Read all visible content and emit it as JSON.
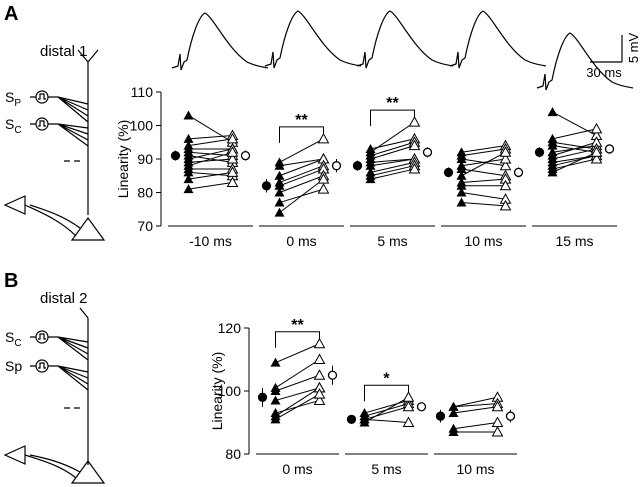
{
  "panels": [
    {
      "label": "A",
      "title": "distal 1",
      "inputs": [
        {
          "main": "S",
          "sub": "P"
        },
        {
          "main": "S",
          "sub": "C"
        }
      ]
    },
    {
      "label": "B",
      "title": "distal 2",
      "inputs": [
        {
          "main": "S",
          "sub": "C"
        },
        {
          "main": "Sp"
        }
      ]
    }
  ],
  "scale_bar": {
    "voltage": "5 mV",
    "time": "30 ms"
  },
  "chart_data": [
    {
      "type": "paired",
      "ylabel": "Linearity (%)",
      "ylim": [
        70,
        110
      ],
      "yticks": [
        70,
        80,
        90,
        100,
        110
      ],
      "groups": [
        {
          "name": "-10 ms",
          "before": [
            103,
            96,
            94,
            93,
            92,
            91,
            90,
            89,
            88,
            87,
            86,
            84,
            81
          ],
          "after": [
            95,
            97,
            96,
            93,
            91,
            89,
            93,
            90,
            92,
            87,
            85,
            86,
            83
          ],
          "mean": [
            91,
            91
          ],
          "err": [
            1.5,
            1.5
          ]
        },
        {
          "name": "0 ms",
          "before": [
            89,
            88,
            85,
            83,
            82,
            80,
            77,
            74
          ],
          "after": [
            96,
            90,
            90,
            88,
            87,
            85,
            81,
            84
          ],
          "mean": [
            82,
            88
          ],
          "err": [
            2,
            2
          ],
          "sig": "**"
        },
        {
          "name": "5 ms",
          "before": [
            92,
            93,
            91,
            90,
            89,
            88,
            86,
            85,
            84
          ],
          "after": [
            101,
            96,
            95,
            94,
            90,
            90,
            89,
            88,
            87
          ],
          "mean": [
            88,
            92
          ],
          "err": [
            1.5,
            1.5
          ],
          "sig": "**"
        },
        {
          "name": "10 ms",
          "before": [
            92,
            91,
            90,
            88,
            87,
            85,
            83,
            82,
            80,
            77
          ],
          "after": [
            94,
            93,
            88,
            90,
            85,
            92,
            84,
            82,
            78,
            76
          ],
          "mean": [
            86,
            86
          ],
          "err": [
            1.5,
            1.5
          ]
        },
        {
          "name": "15 ms",
          "before": [
            104,
            96,
            95,
            94,
            92,
            91,
            90,
            89,
            88,
            87,
            86
          ],
          "after": [
            97,
            99,
            93,
            92,
            94,
            95,
            93,
            91,
            91,
            90,
            92
          ],
          "mean": [
            92,
            93
          ],
          "err": [
            1.5,
            1
          ]
        }
      ]
    },
    {
      "type": "paired",
      "ylabel": "Linearity (%)",
      "ylim": [
        80,
        120
      ],
      "yticks": [
        80,
        100,
        120
      ],
      "groups": [
        {
          "name": "0 ms",
          "before": [
            109,
            101,
            100,
            97,
            93,
            92,
            91
          ],
          "after": [
            115,
            110,
            105,
            101,
            97,
            101,
            99
          ],
          "mean": [
            98,
            105
          ],
          "err": [
            3,
            3
          ],
          "sig": "**"
        },
        {
          "name": "5 ms",
          "before": [
            93,
            92,
            91,
            90,
            91
          ],
          "after": [
            97,
            96,
            95,
            98,
            90
          ],
          "mean": [
            91,
            95
          ],
          "err": [
            1,
            1
          ],
          "sig": "*"
        },
        {
          "name": "10 ms",
          "before": [
            95,
            95,
            93,
            88,
            87
          ],
          "after": [
            98,
            96,
            95,
            90,
            87
          ],
          "mean": [
            92,
            92
          ],
          "err": [
            2,
            2
          ]
        }
      ]
    }
  ]
}
